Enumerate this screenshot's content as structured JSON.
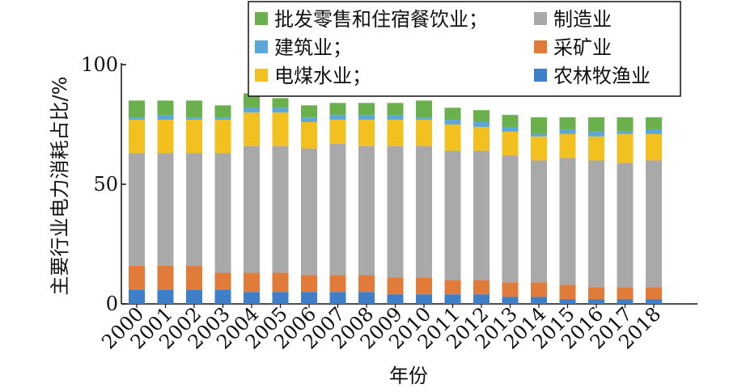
{
  "chart_data": {
    "type": "bar",
    "stacked": true,
    "title": "",
    "xlabel": "年份",
    "ylabel": "主要行业电力消耗占比/%",
    "ylim": [
      0,
      100
    ],
    "yticks": [
      0,
      50,
      100
    ],
    "grid": false,
    "legend_position": "top",
    "categories": [
      "2000",
      "2001",
      "2002",
      "2003",
      "2004",
      "2005",
      "2006",
      "2007",
      "2008",
      "2009",
      "2010",
      "2011",
      "2012",
      "2013",
      "2014",
      "2015",
      "2016",
      "2017",
      "2018"
    ],
    "series": [
      {
        "name": "农林牧渔业",
        "color": "#3f7fca",
        "values": [
          6,
          6,
          6,
          6,
          5,
          5,
          5,
          5,
          5,
          4,
          4,
          4,
          4,
          3,
          3,
          2,
          2,
          2,
          2
        ]
      },
      {
        "name": "采矿业",
        "color": "#e07b39",
        "values": [
          10,
          10,
          10,
          7,
          8,
          8,
          7,
          7,
          7,
          7,
          7,
          6,
          6,
          6,
          6,
          6,
          5,
          5,
          5
        ]
      },
      {
        "name": "制造业",
        "color": "#a9a9a9",
        "values": [
          47,
          47,
          47,
          50,
          53,
          53,
          53,
          55,
          54,
          55,
          55,
          54,
          54,
          53,
          51,
          53,
          53,
          52,
          53
        ]
      },
      {
        "name": "电煤水业",
        "color": "#f2c01f",
        "values": [
          14,
          14,
          14,
          14,
          14,
          14,
          11,
          10,
          11,
          11,
          11,
          11,
          10,
          10,
          10,
          10,
          10,
          12,
          11
        ]
      },
      {
        "name": "建筑业",
        "color": "#5ba7d9",
        "values": [
          1,
          2,
          1,
          1,
          2,
          2,
          2,
          2,
          2,
          2,
          1,
          2,
          2,
          2,
          1,
          2,
          2,
          1,
          2
        ]
      },
      {
        "name": "批发零售和住宿餐饮业",
        "color": "#6ab04c",
        "values": [
          7,
          6,
          7,
          5,
          6,
          4,
          5,
          5,
          5,
          5,
          7,
          5,
          5,
          5,
          7,
          5,
          6,
          6,
          5
        ]
      }
    ]
  },
  "legend": {
    "items": [
      {
        "label": "批发零售和住宿餐饮业；",
        "color": "#6ab04c"
      },
      {
        "label": "制造业",
        "color": "#a9a9a9"
      },
      {
        "label": "建筑业；",
        "color": "#5ba7d9"
      },
      {
        "label": "采矿业",
        "color": "#e07b39"
      },
      {
        "label": "电煤水业；",
        "color": "#f2c01f"
      },
      {
        "label": "农林牧渔业",
        "color": "#3f7fca"
      }
    ]
  }
}
